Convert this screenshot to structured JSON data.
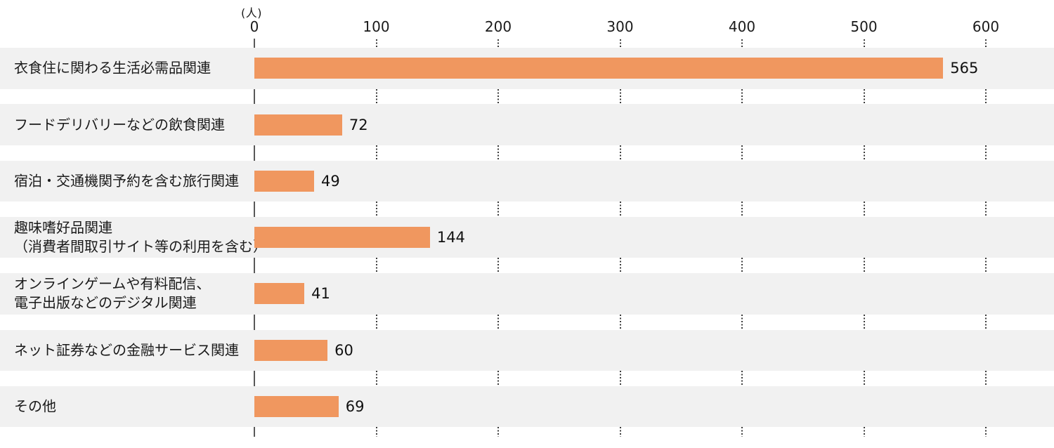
{
  "chart_data": {
    "type": "bar",
    "orientation": "horizontal",
    "title": "",
    "unit_label": "(人)",
    "categories": [
      "衣食住に関わる生活必需品関連",
      "フードデリバリーなどの飲食関連",
      "宿泊・交通機関予約を含む旅行関連",
      "趣味嗜好品関連\n（消費者間取引サイト等の利用を含む）",
      "オンラインゲームや有料配信、\n電子出版などのデジタル関連",
      "ネット証券などの金融サービス関連",
      "その他"
    ],
    "values": [
      565,
      72,
      49,
      144,
      41,
      60,
      69
    ],
    "value_labels": [
      "565",
      "72",
      "49",
      "144",
      "41",
      "60",
      "69"
    ],
    "xticks": [
      0,
      100,
      200,
      300,
      400,
      500,
      600
    ],
    "xlim": [
      0,
      656
    ],
    "grid": "dotted-vertical-segments-between-rows",
    "legend": "none",
    "colors": {
      "bar": "#F0975F",
      "row_band": "#F1F1F1",
      "axis_line": "#595959",
      "gridline": "#3C3C3C",
      "text": "#1A1A1A"
    }
  }
}
